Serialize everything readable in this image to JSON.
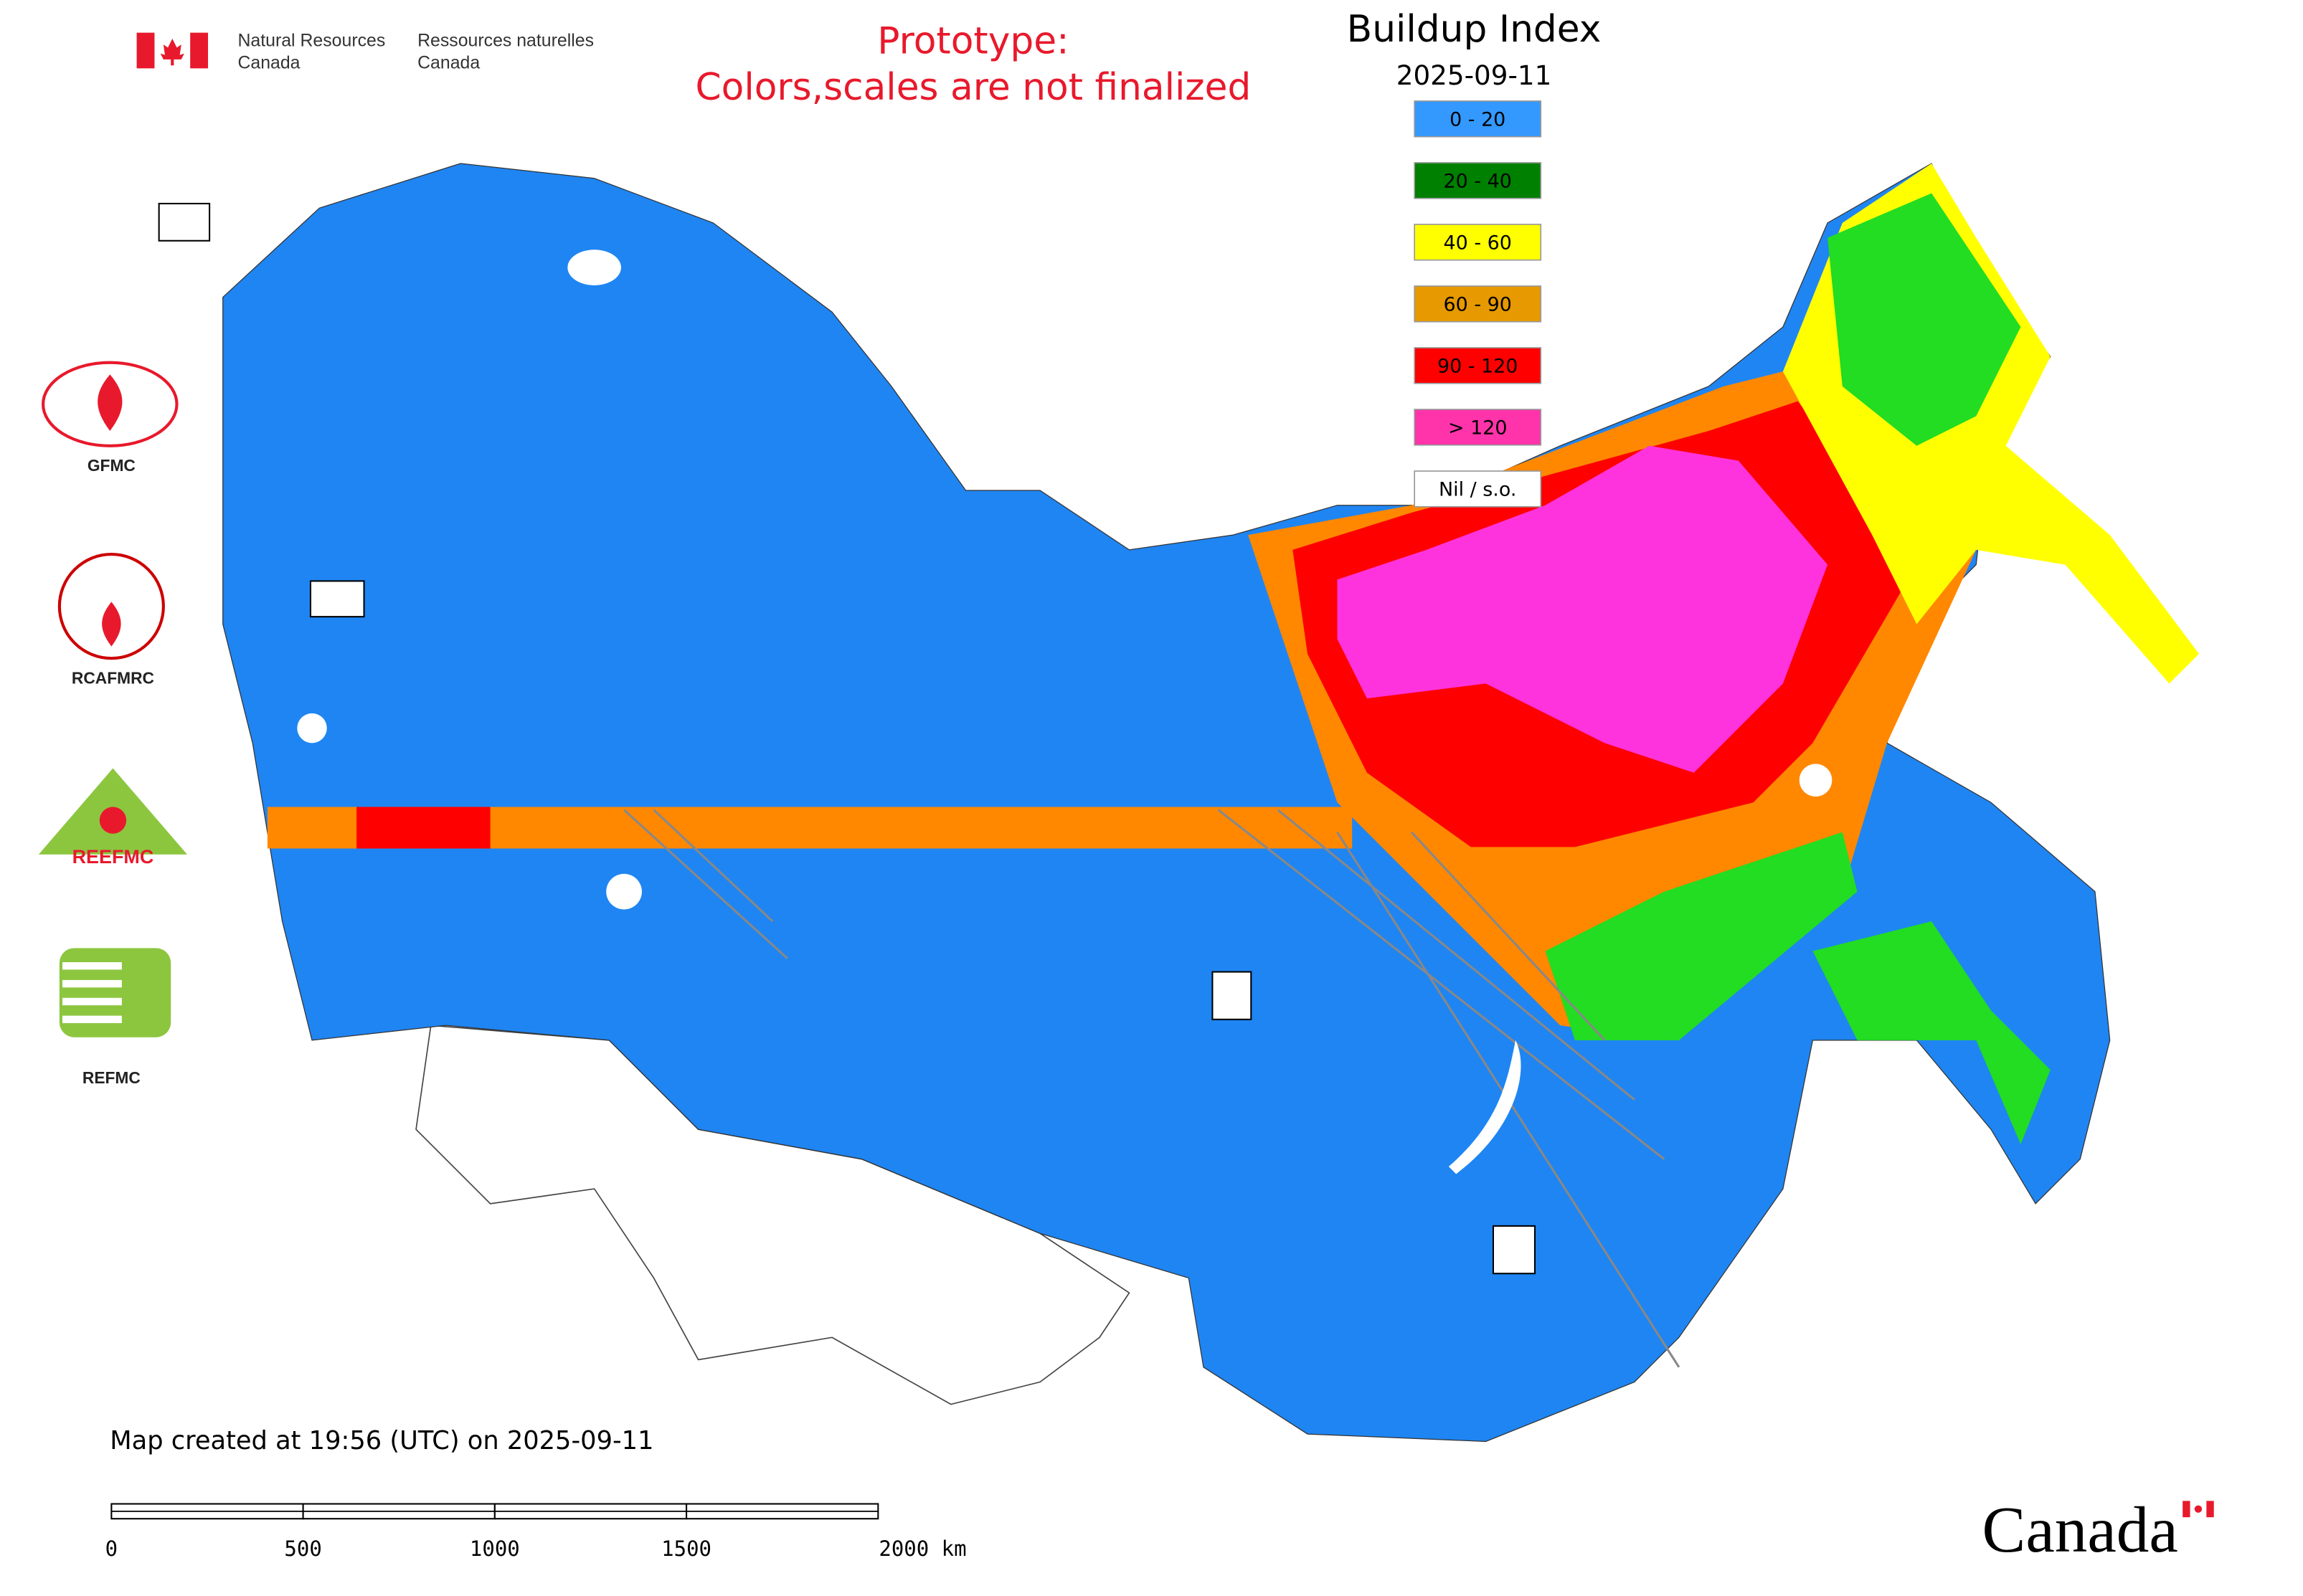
{
  "header": {
    "dept_en": [
      "Natural Resources",
      "Canada"
    ],
    "dept_fr": [
      "Ressources naturelles",
      "Canada"
    ],
    "notice": [
      "Prototype:",
      "Colors,scales are not finalized"
    ]
  },
  "legend": {
    "title": "Buildup Index",
    "date": "2025-09-11",
    "items": [
      {
        "label": "0 - 20",
        "color": "#3399ff"
      },
      {
        "label": "20 - 40",
        "color": "#008000"
      },
      {
        "label": "40 - 60",
        "color": "#ffff00"
      },
      {
        "label": "60 - 90",
        "color": "#e69900"
      },
      {
        "label": "90 - 120",
        "color": "#ff0000"
      },
      {
        "label": "> 120",
        "color": "#ff33aa"
      },
      {
        "label": "Nil / s.o.",
        "color": "#ffffff"
      }
    ]
  },
  "logos": [
    "GFMC",
    "RCAFMRC",
    "REEFMC",
    "REFMC"
  ],
  "footer": {
    "created": "Map created at 19:56 (UTC) on 2025-09-11",
    "scale": [
      "0",
      "500",
      "1000",
      "1500",
      "2000 km"
    ],
    "wordmark": "Canada"
  }
}
